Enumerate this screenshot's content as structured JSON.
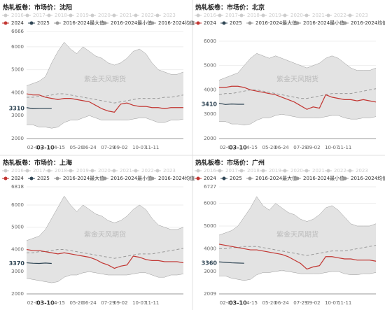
{
  "chart_data": [
    {
      "type": "line",
      "title": "热轧板卷：市场价：沈阳",
      "watermark": "紫金天风期货",
      "legend_inactive": [
        "2016",
        "2017",
        "2018",
        "2019",
        "2020",
        "2021",
        "2022",
        "2023"
      ],
      "inactive_color": "#cccccc",
      "categories": [
        null,
        "02-C",
        null,
        "03-10",
        null,
        "04-15",
        null,
        null,
        "05-20",
        null,
        "06-24",
        null,
        null,
        "07-29",
        null,
        "09-02",
        null,
        null,
        "10-07",
        null,
        "11-11",
        null,
        null,
        null,
        null,
        null
      ],
      "ylim": [
        2000,
        6666
      ],
      "yticks": [
        2000,
        3000,
        4000,
        5000,
        6000,
        6666
      ],
      "current_value": 3310,
      "series": [
        {
          "name": "2024",
          "color": "#c23531",
          "values": [
            3950,
            3900,
            3900,
            3800,
            3750,
            3700,
            3750,
            3750,
            3700,
            3650,
            3600,
            3450,
            3300,
            3200,
            3150,
            3500,
            3550,
            3450,
            3400,
            3400,
            3350,
            3350,
            3300,
            3350,
            3350,
            3350
          ]
        },
        {
          "name": "2025",
          "color": "#2f4554",
          "values": [
            3350,
            3300,
            3310,
            3310,
            3310,
            null,
            null,
            null,
            null,
            null,
            null,
            null,
            null,
            null,
            null,
            null,
            null,
            null,
            null,
            null,
            null,
            null,
            null,
            null,
            null,
            null
          ]
        },
        {
          "name": "2016-2024最大值",
          "color": "#999999",
          "values": [
            4300,
            4400,
            4500,
            4700,
            5300,
            5800,
            6200,
            5900,
            5700,
            6000,
            5800,
            5600,
            5500,
            5300,
            5200,
            5300,
            5500,
            5800,
            5900,
            5700,
            5300,
            5000,
            4900,
            4800,
            4800,
            4900
          ]
        },
        {
          "name": "2016-2024最小值",
          "color": "#999999",
          "values": [
            2600,
            2600,
            2500,
            2500,
            2450,
            2500,
            2700,
            2800,
            2800,
            2900,
            3000,
            2900,
            2800,
            2800,
            2800,
            2800,
            2800,
            2850,
            2900,
            2900,
            2800,
            2700,
            2700,
            2800,
            2800,
            2850
          ]
        },
        {
          "name": "2016-2024均值",
          "color": "#999999",
          "values": [
            3800,
            3800,
            3850,
            3850,
            3900,
            3950,
            3950,
            3900,
            3850,
            3800,
            3750,
            3700,
            3650,
            3600,
            3550,
            3600,
            3650,
            3700,
            3750,
            3750,
            3750,
            3750,
            3800,
            3800,
            3850,
            3900
          ]
        }
      ]
    },
    {
      "type": "line",
      "title": "热轧板卷：市场价：北京",
      "watermark": "紫金天风期货",
      "legend_inactive": [
        "2016",
        "2017",
        "2018",
        "2019",
        "2020",
        "2021",
        "2022",
        "2023"
      ],
      "inactive_color": "#cccccc",
      "categories": [
        null,
        "02-C",
        null,
        "03-10",
        null,
        "04-15",
        null,
        null,
        "05-20",
        null,
        "06-24",
        null,
        null,
        "07-29",
        null,
        "09-02",
        null,
        null,
        "10-07",
        null,
        "11-11",
        null,
        null,
        null,
        null,
        null
      ],
      "ylim": [
        2000,
        6400
      ],
      "yticks": [
        2000,
        3000,
        4000,
        5000,
        6000
      ],
      "current_value": 3410,
      "series": [
        {
          "name": "2024",
          "color": "#c23531",
          "values": [
            4100,
            4100,
            4150,
            4150,
            4100,
            4000,
            3950,
            3900,
            3850,
            3800,
            3700,
            3600,
            3500,
            3350,
            3200,
            3300,
            3250,
            3800,
            3700,
            3650,
            3600,
            3600,
            3550,
            3600,
            3550,
            3500
          ]
        },
        {
          "name": "2025",
          "color": "#2f4554",
          "values": [
            3450,
            3400,
            3420,
            3410,
            3410,
            null,
            null,
            null,
            null,
            null,
            null,
            null,
            null,
            null,
            null,
            null,
            null,
            null,
            null,
            null,
            null,
            null,
            null,
            null,
            null,
            null
          ]
        },
        {
          "name": "2016-2024最大值",
          "color": "#999999",
          "values": [
            4400,
            4500,
            4600,
            4700,
            5000,
            5300,
            5500,
            5400,
            5300,
            5400,
            5300,
            5200,
            5100,
            5000,
            4900,
            5000,
            5100,
            5300,
            5400,
            5300,
            5100,
            4900,
            4800,
            4800,
            4800,
            4900
          ]
        },
        {
          "name": "2016-2024最小值",
          "color": "#999999",
          "values": [
            2700,
            2700,
            2600,
            2600,
            2550,
            2600,
            2750,
            2850,
            2850,
            2950,
            3000,
            2950,
            2900,
            2850,
            2850,
            2850,
            2850,
            2900,
            2950,
            2950,
            2850,
            2800,
            2800,
            2850,
            2850,
            2900
          ]
        },
        {
          "name": "2016-2024均值",
          "color": "#999999",
          "values": [
            3800,
            3850,
            3850,
            3900,
            3950,
            4000,
            4000,
            3950,
            3900,
            3850,
            3800,
            3750,
            3700,
            3650,
            3650,
            3700,
            3750,
            3800,
            3850,
            3850,
            3850,
            3850,
            3900,
            3950,
            4000,
            4050
          ]
        }
      ]
    },
    {
      "type": "line",
      "title": "热轧板卷：市场价：上海",
      "watermark": "紫金天风期货",
      "legend_inactive": [
        "2016",
        "2017",
        "2018",
        "2019",
        "2020",
        "2021",
        "2022",
        "2023"
      ],
      "inactive_color": "#cccccc",
      "categories": [
        null,
        "02-C",
        null,
        "03-10",
        null,
        "04-15",
        null,
        null,
        "05-20",
        null,
        "06-24",
        null,
        null,
        "07-29",
        null,
        "09-02",
        null,
        null,
        "10-07",
        null,
        "11-11",
        null,
        null,
        null,
        null,
        null
      ],
      "ylim": [
        2000,
        6818
      ],
      "yticks": [
        2000,
        3000,
        4000,
        5000,
        6000,
        6818
      ],
      "current_value": 3370,
      "series": [
        {
          "name": "2024",
          "color": "#c23531",
          "values": [
            4000,
            3950,
            3950,
            3900,
            3850,
            3800,
            3850,
            3800,
            3750,
            3700,
            3650,
            3550,
            3400,
            3300,
            3150,
            3250,
            3300,
            3700,
            3650,
            3550,
            3500,
            3500,
            3450,
            3450,
            3450,
            3400
          ]
        },
        {
          "name": "2025",
          "color": "#2f4554",
          "values": [
            3400,
            3380,
            3370,
            3390,
            3370,
            null,
            null,
            null,
            null,
            null,
            null,
            null,
            null,
            null,
            null,
            null,
            null,
            null,
            null,
            null,
            null,
            null,
            null,
            null,
            null,
            null
          ]
        },
        {
          "name": "2016-2024最大值",
          "color": "#999999",
          "values": [
            4400,
            4500,
            4600,
            4900,
            5400,
            5900,
            6400,
            6000,
            5700,
            6000,
            5800,
            5600,
            5500,
            5300,
            5200,
            5300,
            5500,
            5800,
            6000,
            5800,
            5400,
            5100,
            5000,
            4900,
            4900,
            5000
          ]
        },
        {
          "name": "2016-2024最小值",
          "color": "#999999",
          "values": [
            2700,
            2650,
            2600,
            2550,
            2500,
            2550,
            2750,
            2850,
            2850,
            2950,
            3000,
            2950,
            2900,
            2850,
            2850,
            2850,
            2850,
            2900,
            2950,
            2950,
            2850,
            2750,
            2750,
            2850,
            2850,
            2900
          ]
        },
        {
          "name": "2016-2024均值",
          "color": "#999999",
          "values": [
            3850,
            3850,
            3900,
            3900,
            3950,
            4000,
            4000,
            3950,
            3900,
            3850,
            3800,
            3750,
            3700,
            3650,
            3600,
            3650,
            3700,
            3750,
            3800,
            3800,
            3800,
            3850,
            3900,
            3950,
            4000,
            4050
          ]
        }
      ]
    },
    {
      "type": "line",
      "title": "热轧板卷：市场价：广州",
      "watermark": "紫金天风期货",
      "legend_inactive": [
        "2016",
        "2017",
        "2018",
        "2019",
        "2020",
        "2021",
        "2022",
        "2023"
      ],
      "inactive_color": "#cccccc",
      "categories": [
        null,
        "02-C",
        null,
        "03-10",
        null,
        "04-15",
        null,
        null,
        "05-20",
        null,
        "06-24",
        null,
        null,
        "07-29",
        null,
        "09-02",
        null,
        null,
        "10-07",
        null,
        "11-11",
        null,
        null,
        null,
        null,
        null
      ],
      "ylim": [
        2009,
        6727
      ],
      "yticks": [
        2009,
        3000,
        4000,
        5000,
        6000,
        6727
      ],
      "current_value": 3360,
      "series": [
        {
          "name": "2024",
          "color": "#c23531",
          "values": [
            4200,
            4150,
            4100,
            4050,
            4000,
            3950,
            3950,
            3900,
            3850,
            3800,
            3750,
            3650,
            3500,
            3350,
            3100,
            3200,
            3250,
            3650,
            3650,
            3600,
            3550,
            3550,
            3500,
            3500,
            3500,
            3450
          ]
        },
        {
          "name": "2025",
          "color": "#2f4554",
          "values": [
            3420,
            3400,
            3380,
            3370,
            3360,
            null,
            null,
            null,
            null,
            null,
            null,
            null,
            null,
            null,
            null,
            null,
            null,
            null,
            null,
            null,
            null,
            null,
            null,
            null,
            null,
            null
          ]
        },
        {
          "name": "2016-2024最大值",
          "color": "#999999",
          "values": [
            4600,
            4700,
            4800,
            5000,
            5400,
            5800,
            6300,
            5900,
            5700,
            6000,
            5800,
            5600,
            5500,
            5300,
            5200,
            5300,
            5500,
            5800,
            5900,
            5700,
            5400,
            5100,
            5000,
            5000,
            5000,
            5100
          ]
        },
        {
          "name": "2016-2024最小值",
          "color": "#999999",
          "values": [
            2800,
            2800,
            2700,
            2650,
            2600,
            2650,
            2850,
            2950,
            2950,
            3000,
            3050,
            3000,
            2950,
            2900,
            2900,
            2900,
            2900,
            2950,
            3000,
            3000,
            2900,
            2850,
            2850,
            2900,
            2900,
            2950
          ]
        },
        {
          "name": "2016-2024均值",
          "color": "#999999",
          "values": [
            4000,
            4000,
            4050,
            4050,
            4100,
            4100,
            4100,
            4050,
            4000,
            3950,
            3900,
            3850,
            3800,
            3750,
            3700,
            3750,
            3800,
            3850,
            3900,
            3900,
            3900,
            3950,
            4000,
            4050,
            4100,
            4150
          ]
        }
      ]
    }
  ]
}
